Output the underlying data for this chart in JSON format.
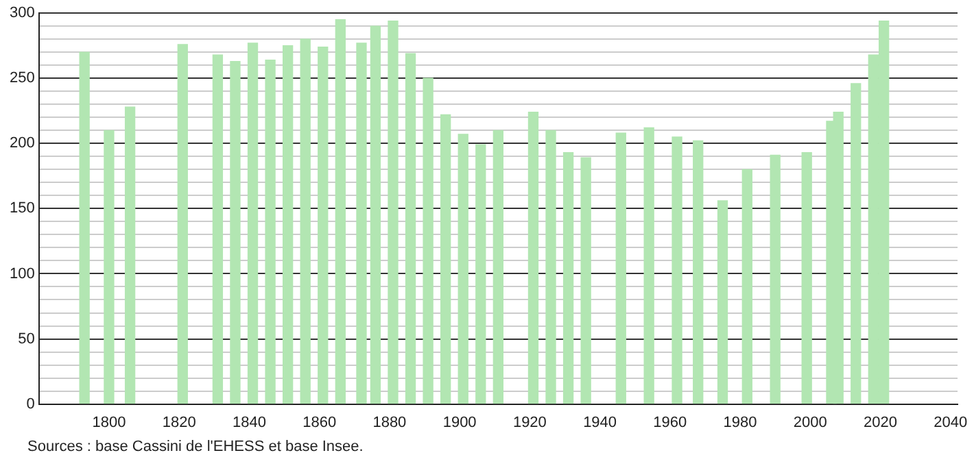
{
  "chart_data": {
    "type": "bar",
    "x": [
      1793,
      1800,
      1806,
      1821,
      1831,
      1836,
      1841,
      1846,
      1851,
      1856,
      1861,
      1866,
      1872,
      1876,
      1881,
      1886,
      1891,
      1896,
      1901,
      1906,
      1911,
      1921,
      1926,
      1931,
      1936,
      1946,
      1954,
      1962,
      1968,
      1975,
      1982,
      1990,
      1999,
      2006,
      2008,
      2013,
      2018,
      2021
    ],
    "values": [
      270,
      210,
      228,
      276,
      268,
      263,
      277,
      264,
      275,
      280,
      274,
      295,
      277,
      290,
      294,
      269,
      250,
      222,
      207,
      199,
      210,
      224,
      210,
      193,
      189,
      208,
      212,
      205,
      202,
      156,
      180,
      191,
      193,
      217,
      224,
      246,
      268,
      294
    ],
    "color": "#b2e6b2",
    "xlim": [
      1780,
      2042
    ],
    "xticks": [
      1800,
      1820,
      1840,
      1860,
      1880,
      1900,
      1920,
      1940,
      1960,
      1980,
      2000,
      2020,
      2040
    ],
    "ylim": [
      0,
      300
    ],
    "yticks": [
      0,
      {
        "value": 10,
        "label": null
      },
      {
        "value": 20,
        "label": null
      },
      {
        "value": 30,
        "label": null
      },
      {
        "value": 40,
        "label": null
      },
      50,
      {
        "value": 60,
        "label": null
      },
      {
        "value": 70,
        "label": null
      },
      {
        "value": 80,
        "label": null
      },
      {
        "value": 90,
        "label": null
      },
      100,
      {
        "value": 110,
        "label": null
      },
      {
        "value": 120,
        "label": null
      },
      {
        "value": 130,
        "label": null
      },
      {
        "value": 140,
        "label": null
      },
      150,
      {
        "value": 160,
        "label": null
      },
      {
        "value": 170,
        "label": null
      },
      {
        "value": 180,
        "label": null
      },
      {
        "value": 190,
        "label": null
      },
      200,
      {
        "value": 210,
        "label": null
      },
      {
        "value": 220,
        "label": null
      },
      {
        "value": 230,
        "label": null
      },
      {
        "value": 240,
        "label": null
      },
      250,
      {
        "value": 260,
        "label": null
      },
      {
        "value": 270,
        "label": null
      },
      {
        "value": 280,
        "label": null
      },
      {
        "value": 290,
        "label": null
      },
      300
    ],
    "grid": "y",
    "legend": false,
    "annotations": [
      "Sources : base Cassini de l'EHESS et base Insee."
    ]
  }
}
